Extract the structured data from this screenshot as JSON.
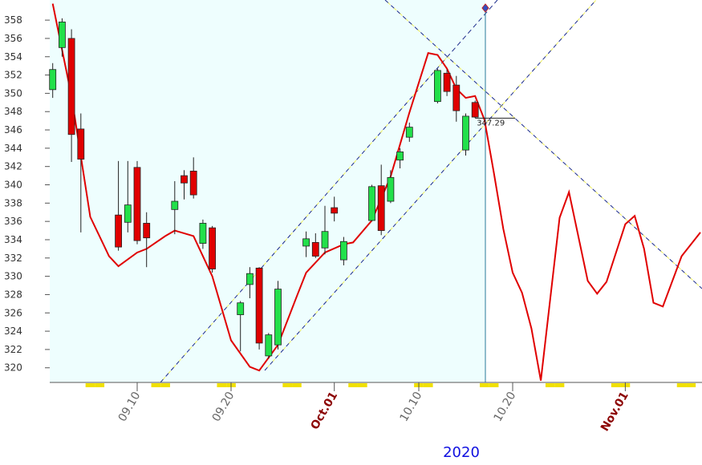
{
  "chart_data": {
    "type": "candlestick",
    "x_label": "2020",
    "x": [
      "09.01",
      "09.02",
      "09.03",
      "09.04",
      "09.08",
      "09.09",
      "09.10",
      "09.11",
      "09.14",
      "09.15",
      "09.16",
      "09.17",
      "09.18",
      "09.21",
      "09.22",
      "09.23",
      "09.24",
      "09.25",
      "09.28",
      "09.29",
      "09.30",
      "10.01",
      "10.02",
      "10.05",
      "10.06",
      "10.07",
      "10.08",
      "10.09",
      "10.12",
      "10.13",
      "10.14",
      "10.15",
      "10.16"
    ],
    "open": [
      350.4,
      355,
      356,
      346.1,
      336.7,
      335.9,
      341.9,
      335.8,
      337.3,
      341,
      341.5,
      333.6,
      335.3,
      325.8,
      329.1,
      330.9,
      321.3,
      322.5,
      333.3,
      333.7,
      333.1,
      337.5,
      331.8,
      336.1,
      339.9,
      338.2,
      342.7,
      345.2,
      349.1,
      352.2,
      350.9,
      343.8,
      349
    ],
    "high": [
      353.3,
      358.2,
      357,
      347.8,
      342.6,
      342.6,
      342.6,
      337,
      340.4,
      341.6,
      343,
      336.2,
      335.5,
      327.3,
      331,
      331,
      323.8,
      329.5,
      334.9,
      334.7,
      337.7,
      338.7,
      334.3,
      340,
      342.2,
      341.6,
      344,
      346.8,
      352.7,
      352.6,
      351.9,
      347.8,
      349.2
    ],
    "low": [
      349.5,
      354,
      342.5,
      334.8,
      332.8,
      334.8,
      333.5,
      331,
      334.6,
      338.4,
      338.5,
      333,
      330.4,
      321.8,
      327.6,
      322,
      321,
      322,
      332.1,
      332,
      332.4,
      336,
      331.2,
      336,
      334.5,
      338,
      341.8,
      344.7,
      348.9,
      349.7,
      346.9,
      343.2,
      347.3
    ],
    "close": [
      352.6,
      357.8,
      345.5,
      342.8,
      333.2,
      337.8,
      333.9,
      334.2,
      338.2,
      340.2,
      338.9,
      335.8,
      330.8,
      327.1,
      330.3,
      322.7,
      323.6,
      328.6,
      334.1,
      332.2,
      334.9,
      336.9,
      333.8,
      339.8,
      335,
      340.8,
      343.6,
      346.3,
      352.5,
      350.2,
      348.1,
      347.5,
      347.4
    ],
    "up_color": "#22e04a",
    "down_color": "#e00000",
    "overlays": [
      {
        "type": "line",
        "color": "#e00000",
        "x": [
          "09.01",
          "09.03",
          "09.05",
          "09.07",
          "09.08",
          "09.10",
          "09.11",
          "09.13",
          "09.14",
          "09.16",
          "09.18",
          "09.20",
          "09.22",
          "09.23",
          "09.25",
          "09.27",
          "09.28",
          "09.30",
          "10.02",
          "10.03",
          "10.05",
          "10.07",
          "10.09",
          "10.11",
          "10.12",
          "10.13",
          "10.14",
          "10.15",
          "10.16",
          "10.17",
          "10.18",
          "10.19",
          "10.20",
          "10.21",
          "10.22",
          "10.23",
          "10.25",
          "10.26",
          "10.28",
          "10.29",
          "10.30",
          "11.01",
          "11.02",
          "11.03",
          "11.04",
          "11.05",
          "11.07",
          "11.09"
        ],
        "values": [
          359.8,
          349.7,
          336.5,
          332.2,
          331.1,
          332.6,
          333,
          334.4,
          335,
          334.4,
          330,
          323,
          320.1,
          319.7,
          322.5,
          327.8,
          330.4,
          332.6,
          333.5,
          333.7,
          336.1,
          340.9,
          347.9,
          354.4,
          354.2,
          352.7,
          350.5,
          349.5,
          349.7,
          347.1,
          341.3,
          335.2,
          330.4,
          328.2,
          324.3,
          318.6,
          336.4,
          339.2,
          329.5,
          328.1,
          329.4,
          335.7,
          336.6,
          333,
          327.1,
          326.7,
          332.2,
          334.8
        ]
      }
    ],
    "annotation": 347.29,
    "xlim": [
      "08.31",
      "11.09"
    ],
    "xticks": [
      "09.10",
      "09.20",
      {
        "value": "10.01",
        "label": "Oct.01"
      },
      "10.10",
      "10.20",
      {
        "value": "11.01",
        "label": "Nov.01"
      }
    ],
    "ylim": [
      318.4,
      360.2
    ],
    "yticks": [
      320,
      322,
      324,
      326,
      328,
      330,
      332,
      334,
      336,
      338,
      340,
      342,
      344,
      346,
      348,
      350,
      352,
      354,
      356,
      358
    ]
  }
}
